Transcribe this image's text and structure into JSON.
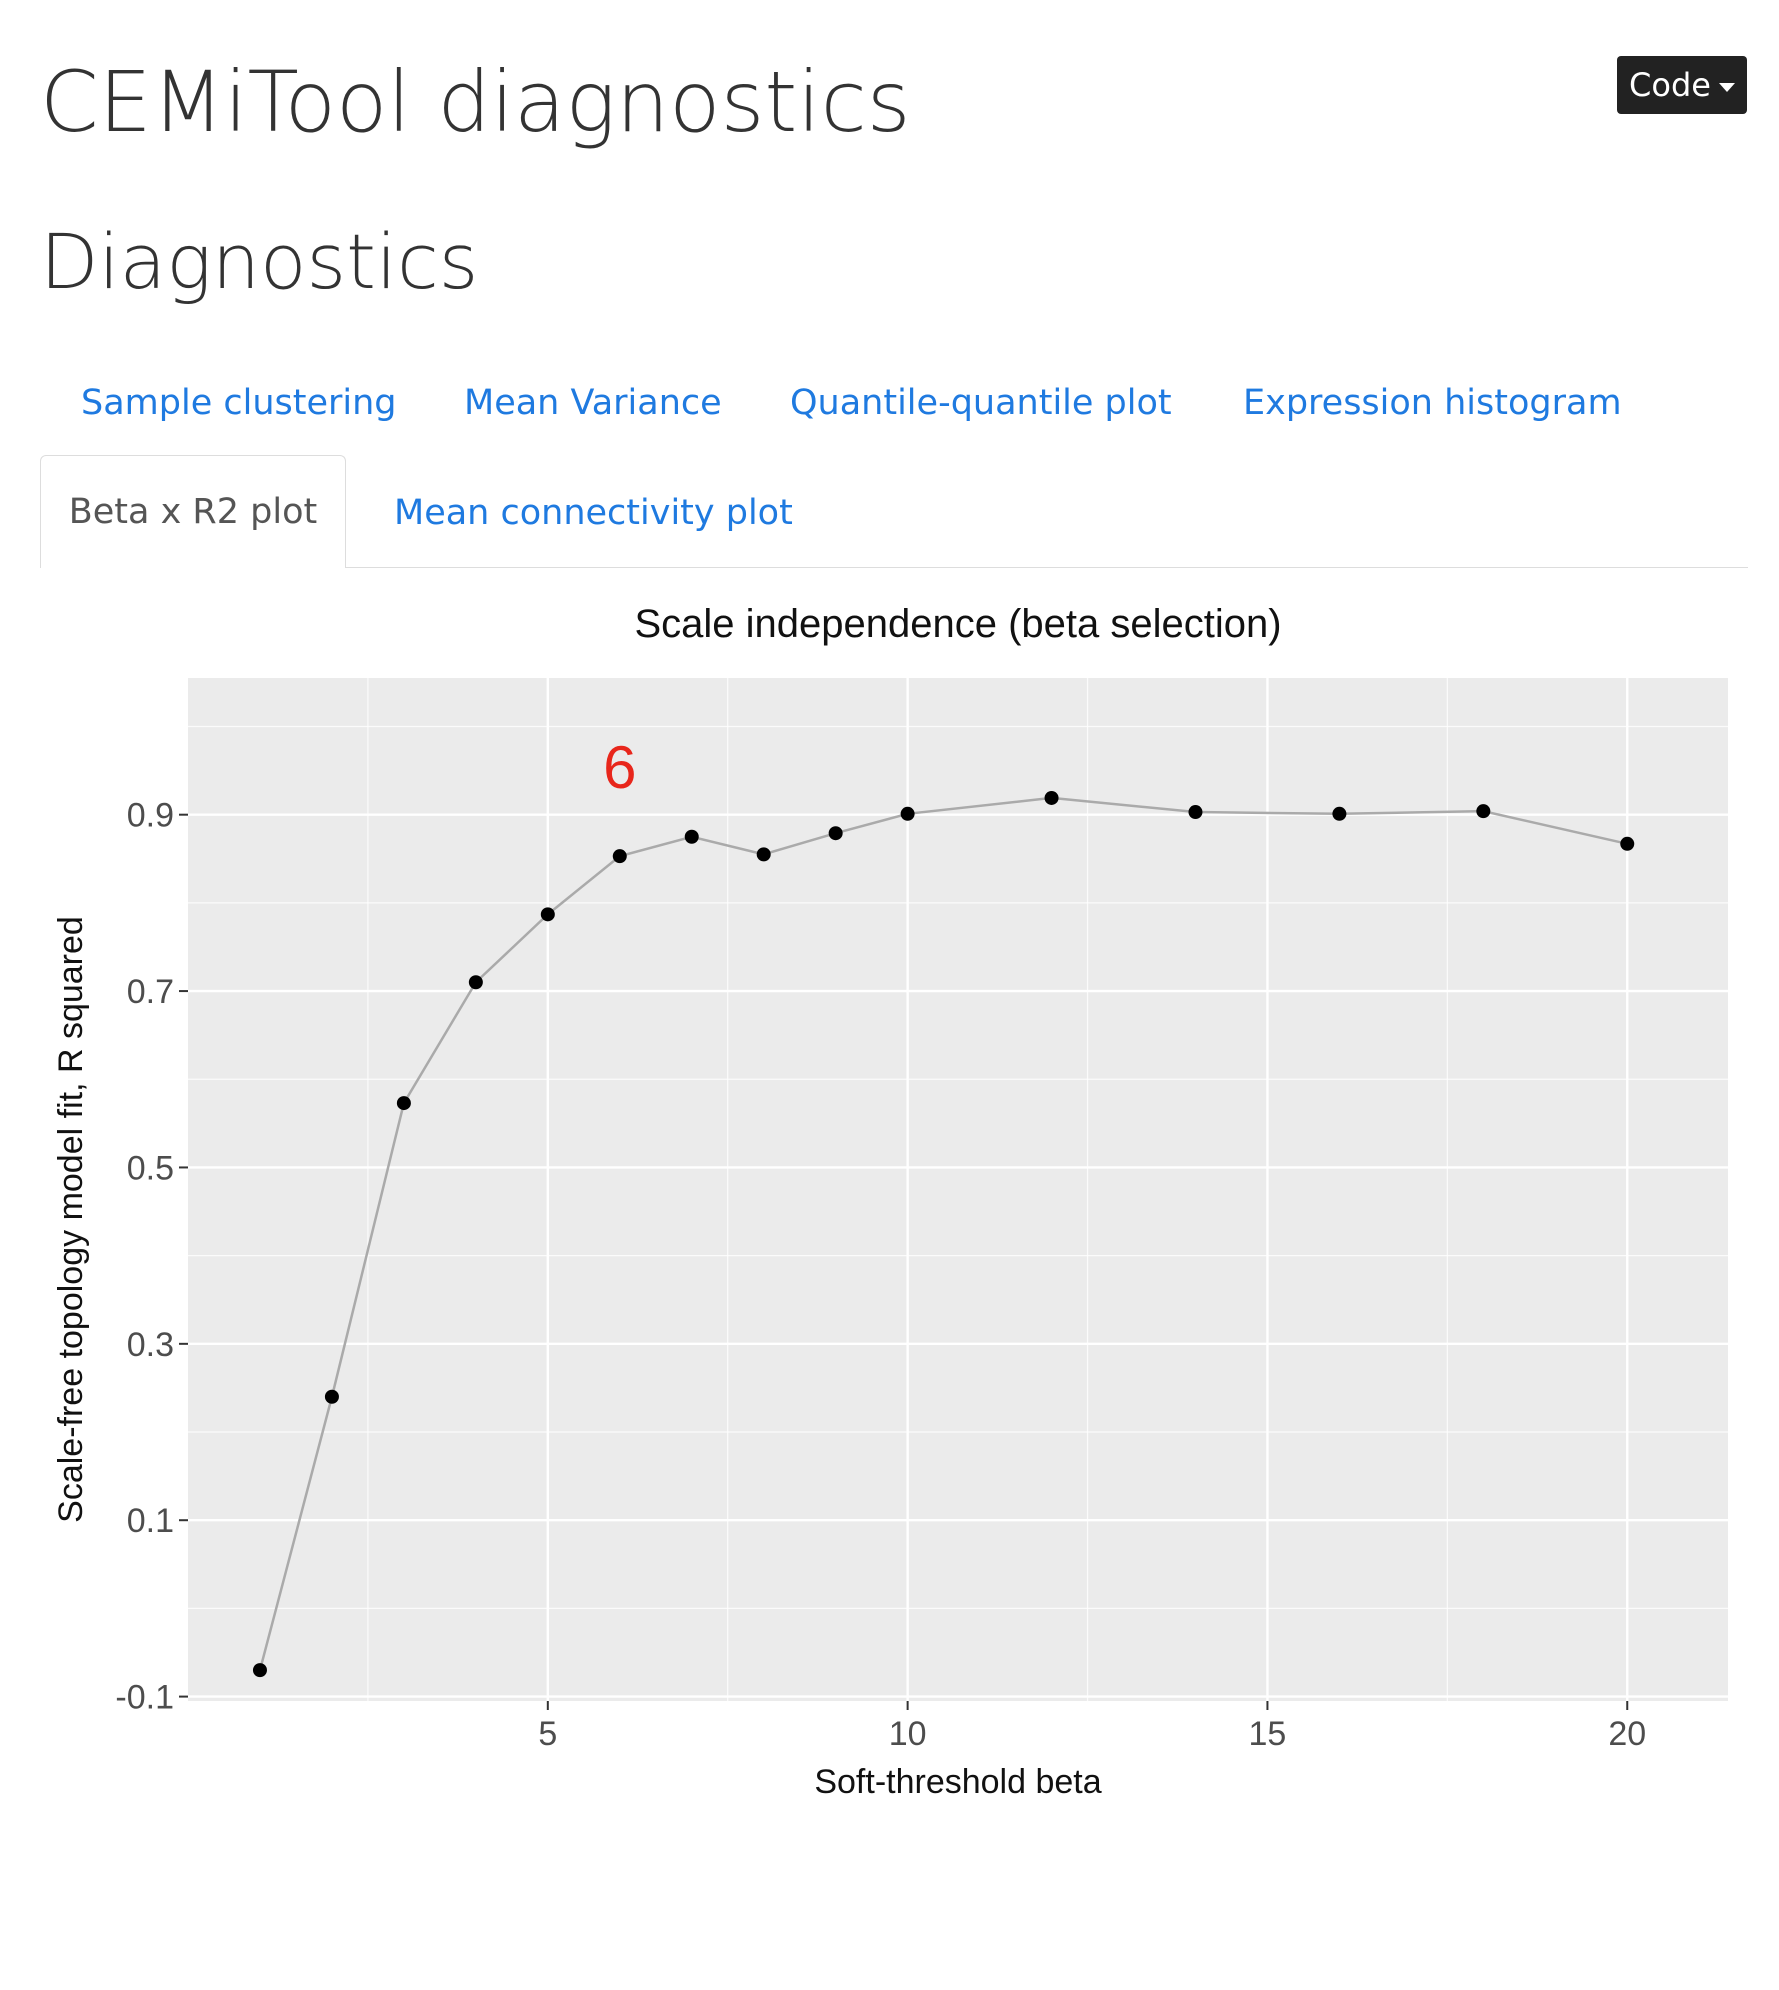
{
  "page": {
    "title": "CEMiTool diagnostics",
    "section_title": "Diagnostics",
    "code_button_label": "Code"
  },
  "tabs": {
    "row1": [
      "Sample clustering",
      "Mean Variance",
      "Quantile-quantile plot",
      "Expression histogram"
    ],
    "active": "Beta x R2 plot",
    "row2_other": "Mean connectivity plot"
  },
  "colors": {
    "link": "#1f7ae0",
    "panel_bg": "#ebebeb",
    "grid": "#ffffff",
    "line": "#aaaaaa",
    "point": "#000000",
    "annotation": "#e8261b",
    "code_button_bg": "#222222"
  },
  "chart_data": {
    "type": "line",
    "title": "Scale independence (beta selection)",
    "xlabel": "Soft-threshold beta",
    "ylabel": "Scale-free topology model fit, R squared",
    "xlim": [
      0,
      21.4
    ],
    "ylim": [
      -0.105,
      1.055
    ],
    "x_ticks": [
      5,
      10,
      15,
      20
    ],
    "x_tick_labels": [
      "5",
      "10",
      "15",
      "20"
    ],
    "y_ticks": [
      -0.1,
      0.1,
      0.3,
      0.5,
      0.7,
      0.9
    ],
    "y_tick_labels": [
      "-0.1",
      "0.1",
      "0.3",
      "0.5",
      "0.7",
      "0.9"
    ],
    "grid": true,
    "x": [
      1,
      2,
      3,
      4,
      5,
      6,
      7,
      8,
      9,
      10,
      12,
      14,
      16,
      18,
      20
    ],
    "y": [
      -0.07,
      0.24,
      0.573,
      0.71,
      0.787,
      0.853,
      0.875,
      0.855,
      0.879,
      0.901,
      0.919,
      0.903,
      0.901,
      0.904,
      0.867
    ],
    "annotation": {
      "text": "6",
      "x": 6,
      "y": 0.953
    }
  }
}
